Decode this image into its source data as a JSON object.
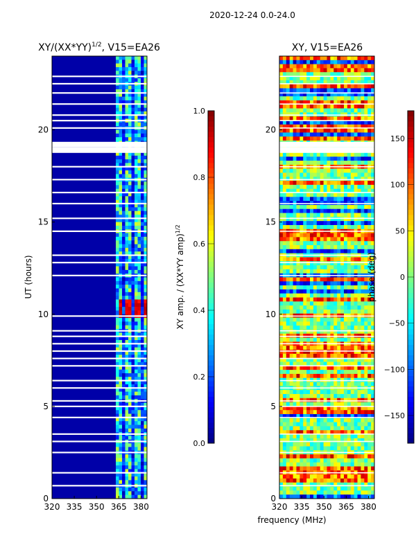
{
  "figure": {
    "suptitle": "2020-12-24 0.0-24.0",
    "shared_xlabel": "frequency (MHz)"
  },
  "chart_data": [
    {
      "type": "heatmap",
      "title": "XY/(XX*YY)^1/2, V15=EA26",
      "title_main": "XY/(XX*YY)",
      "title_sup": "1/2",
      "title_tail": ", V15=EA26",
      "xlabel": "frequency (MHz)",
      "ylabel": "UT (hours)",
      "xlim": [
        320,
        384
      ],
      "ylim": [
        0,
        24
      ],
      "xticks": [
        320,
        335,
        350,
        365,
        380
      ],
      "yticks": [
        0,
        5,
        10,
        15,
        20
      ],
      "colorbar": {
        "label": "XY amp. / (XX*YY amp)^1/2",
        "label_main": "XY amp. / (XX*YY amp)",
        "label_sup": "1/2",
        "range": [
          0.0,
          1.0
        ],
        "ticks": [
          "0.0",
          "0.2",
          "0.4",
          "0.6",
          "0.8",
          "1.0"
        ],
        "colormap": "jet"
      },
      "gaps_hours": [
        0.7,
        1.4,
        2.5,
        3.1,
        3.5,
        4.4,
        5.0,
        5.3,
        6.0,
        6.4,
        7.2,
        7.6,
        8.0,
        8.4,
        8.8,
        9.1,
        9.9,
        12.1,
        12.8,
        13.2,
        14.5,
        15.2,
        16.0,
        16.6,
        17.3,
        18.0,
        18.9,
        19.2,
        20.1,
        20.5,
        20.8,
        21.4,
        22.0,
        22.5,
        22.9
      ]
    },
    {
      "type": "heatmap",
      "title": "XY, V15=EA26",
      "xlabel": "frequency (MHz)",
      "ylabel": "",
      "xlim": [
        320,
        384
      ],
      "ylim": [
        0,
        24
      ],
      "xticks": [
        320,
        335,
        350,
        365,
        380
      ],
      "yticks": [
        0,
        5,
        10,
        15,
        20
      ],
      "colorbar": {
        "label": "phase (deg)",
        "range": [
          -180,
          180
        ],
        "ticks": [
          "150",
          "100",
          "50",
          "0",
          "−50",
          "−100",
          "−150"
        ],
        "colormap": "jet"
      }
    }
  ]
}
